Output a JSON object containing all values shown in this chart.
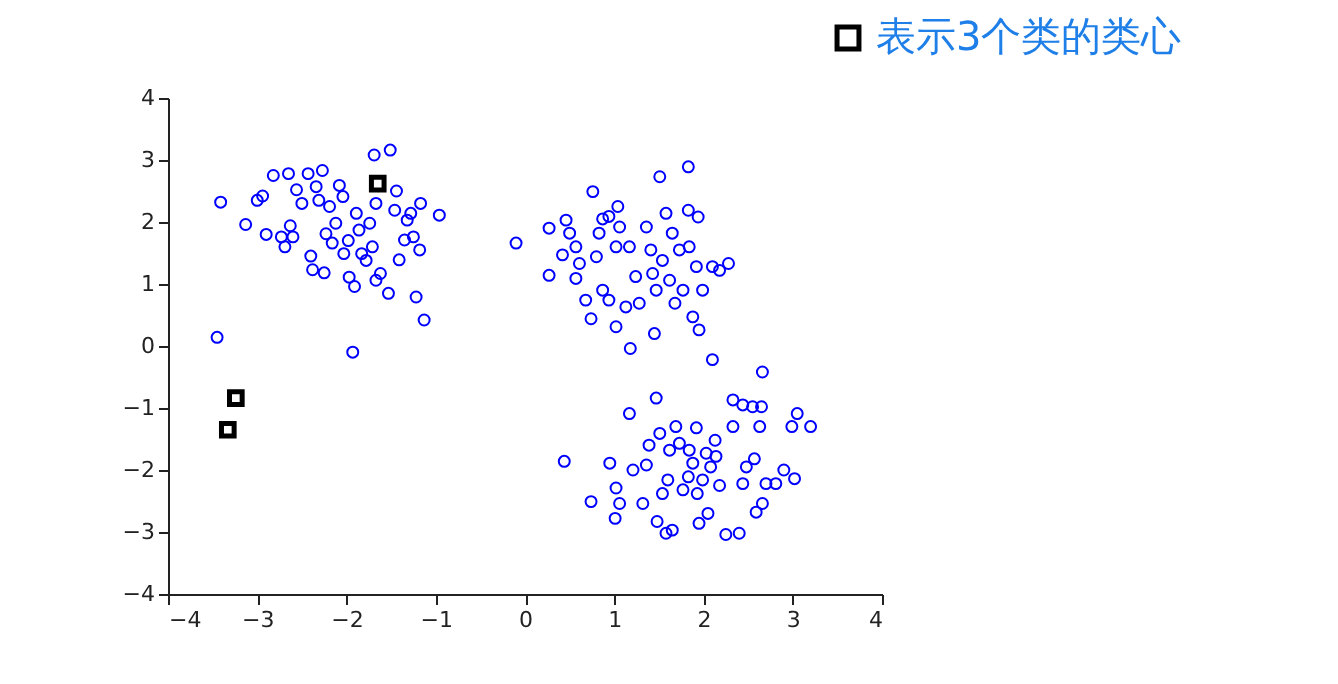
{
  "chart_data": {
    "type": "scatter",
    "xlim": [
      -4,
      4
    ],
    "ylim": [
      -4,
      4
    ],
    "xticks": [
      -4,
      -3,
      -2,
      -1,
      0,
      1,
      2,
      3,
      4
    ],
    "yticks": [
      -4,
      -3,
      -2,
      -1,
      0,
      1,
      2,
      3,
      4
    ],
    "grid": false,
    "legend": "top right",
    "series": [
      {
        "color": "#0000ff",
        "marker": "circle",
        "x": [
          -3.41,
          -3.13,
          -3.0,
          -2.94,
          -2.9,
          -2.82,
          -2.73,
          -2.69,
          -2.65,
          -2.63,
          -2.6,
          -2.56,
          -2.5,
          -2.43,
          -2.4,
          -2.38,
          -2.34,
          -2.31,
          -2.27,
          -2.25,
          -2.23,
          -2.19,
          -2.16,
          -2.12,
          -2.08,
          -2.04,
          -2.03,
          -1.98,
          -1.97,
          -1.93,
          -1.91,
          -1.89,
          -1.86,
          -1.83,
          -1.78,
          -1.74,
          -1.71,
          -1.69,
          -1.51,
          -1.67,
          -1.67,
          -1.62,
          -1.53,
          -1.46,
          -1.44,
          -1.41,
          -1.35,
          -1.32,
          -1.28,
          -1.22,
          -1.25,
          -1.17,
          -1.18,
          -1.13,
          -0.96,
          -0.1,
          -3.45,
          0.27,
          0.27,
          0.46,
          0.5,
          0.42,
          0.57,
          0.61,
          0.57,
          0.68,
          0.74,
          0.76,
          0.8,
          0.83,
          0.87,
          0.94,
          1.04,
          1.02,
          1.06,
          0.87,
          0.94,
          1.02,
          1.17,
          1.18,
          1.24,
          1.28,
          1.36,
          1.41,
          1.45,
          1.47,
          1.51,
          1.54,
          1.58,
          1.62,
          1.65,
          1.68,
          1.73,
          1.77,
          1.83,
          1.83,
          1.88,
          1.92,
          1.94,
          1.99,
          2.1,
          2.18,
          2.28,
          2.1,
          1.84,
          1.43,
          1.13,
          1.95,
          2.66,
          0.44,
          0.74,
          0.95,
          1.01,
          1.02,
          1.06,
          1.17,
          1.21,
          1.32,
          1.36,
          1.39,
          1.47,
          1.48,
          1.51,
          1.54,
          1.58,
          1.6,
          1.65,
          1.69,
          1.73,
          1.77,
          1.83,
          1.88,
          1.92,
          1.93,
          1.95,
          1.99,
          2.03,
          2.05,
          2.08,
          2.13,
          2.18,
          2.25,
          2.33,
          2.33,
          2.4,
          2.44,
          2.44,
          2.48,
          2.55,
          2.57,
          2.59,
          2.63,
          2.65,
          2.66,
          2.7,
          2.81,
          2.9,
          3.02,
          2.99,
          3.05,
          3.2,
          1.84,
          2.14,
          1.62
        ],
        "values": [
          2.32,
          1.96,
          2.35,
          2.42,
          1.8,
          2.75,
          1.76,
          1.6,
          2.78,
          1.94,
          1.76,
          2.52,
          2.3,
          2.78,
          1.45,
          1.23,
          2.57,
          2.35,
          2.83,
          1.18,
          1.81,
          2.25,
          1.66,
          1.98,
          2.59,
          2.41,
          1.49,
          1.7,
          1.11,
          -0.1,
          0.96,
          2.14,
          1.87,
          1.49,
          1.38,
          1.98,
          1.6,
          3.08,
          3.16,
          2.3,
          1.06,
          1.17,
          0.85,
          2.19,
          2.5,
          1.39,
          1.71,
          2.03,
          2.14,
          0.79,
          1.76,
          2.3,
          1.55,
          0.42,
          2.11,
          1.66,
          0.14,
          1.9,
          1.14,
          2.03,
          1.82,
          1.47,
          1.6,
          1.33,
          1.09,
          0.74,
          0.44,
          2.49,
          1.44,
          1.82,
          2.05,
          2.09,
          2.25,
          1.6,
          1.92,
          0.9,
          0.74,
          0.31,
          1.6,
          -0.04,
          1.12,
          0.69,
          1.92,
          1.55,
          0.2,
          0.9,
          2.73,
          1.38,
          2.14,
          1.06,
          1.82,
          0.69,
          1.55,
          0.9,
          2.89,
          2.19,
          0.47,
          1.28,
          2.08,
          0.9,
          1.28,
          1.22,
          1.33,
          -0.22,
          1.6,
          1.17,
          0.63,
          0.26,
          -0.42,
          -1.86,
          -2.51,
          -1.89,
          -2.78,
          -2.29,
          -2.54,
          -1.09,
          -2.0,
          -2.54,
          -1.92,
          -1.6,
          -0.84,
          -2.83,
          -1.41,
          -2.38,
          -3.02,
          -2.16,
          -2.97,
          -1.3,
          -1.57,
          -2.32,
          -2.11,
          -1.89,
          -1.32,
          -2.38,
          -2.86,
          -2.16,
          -1.73,
          -2.7,
          -1.95,
          -1.52,
          -2.25,
          -3.04,
          -0.87,
          -1.3,
          -3.02,
          -0.95,
          -2.22,
          -1.95,
          -0.98,
          -1.82,
          -2.68,
          -1.3,
          -0.98,
          -2.54,
          -2.22,
          -2.22,
          -2.0,
          -2.14,
          -1.3,
          -1.09,
          -1.3,
          -1.68,
          -1.78,
          -1.68
        ]
      },
      {
        "name": "表示3个类的类心",
        "color": "#000000",
        "marker": "square",
        "x": [
          -1.65,
          -3.24,
          -3.33
        ],
        "values": [
          2.62,
          -0.84,
          -1.35
        ]
      }
    ]
  }
}
